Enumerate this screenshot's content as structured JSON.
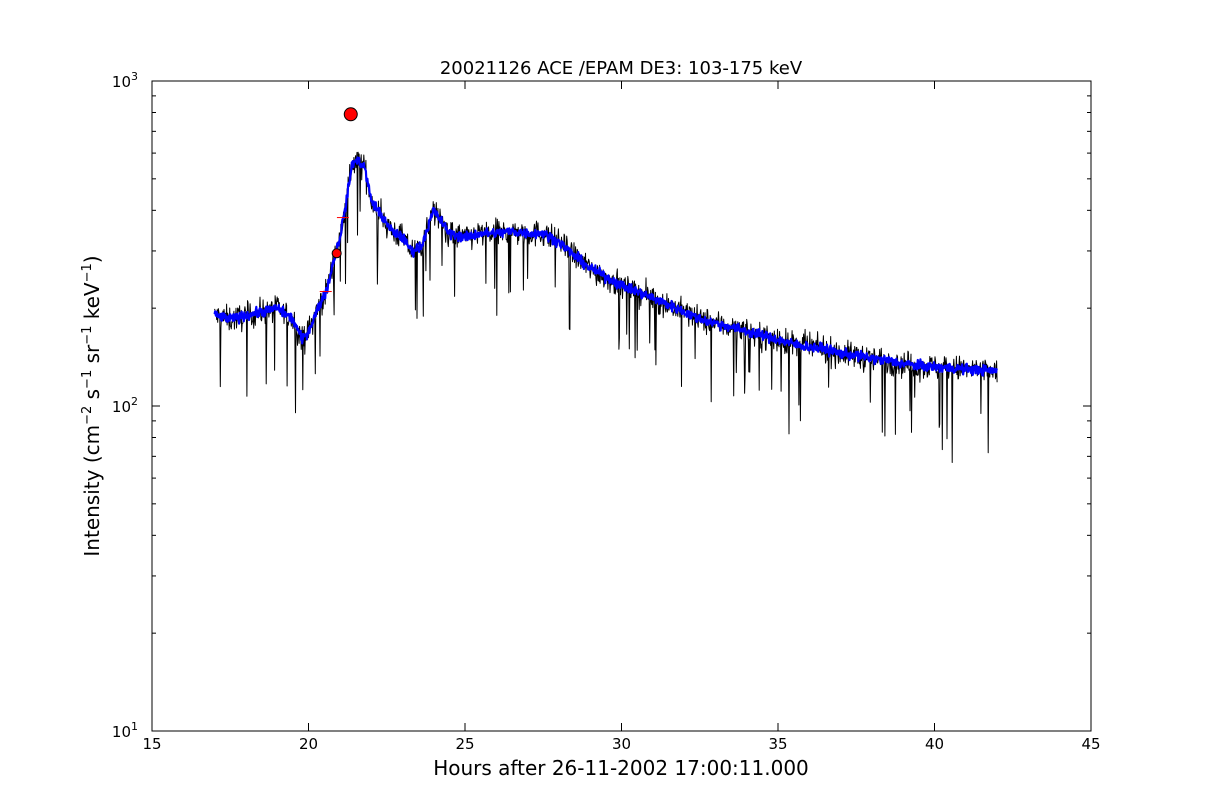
{
  "chart_data": {
    "type": "line",
    "title": "20021126 ACE /EPAM DE3: 103-175 keV",
    "xlabel": "Hours after 26-11-2002 17:00:11.000",
    "ylabel_text": "Intensity (cm",
    "ylabel_parts": [
      "Intensity (cm",
      "−2",
      " s",
      "−1",
      " sr",
      "−1",
      " keV",
      "−1",
      ")"
    ],
    "xlim": [
      15,
      45
    ],
    "ylim": [
      10,
      1000
    ],
    "yscale": "log",
    "grid": false,
    "legend": "none",
    "x_ticks": [
      "15",
      "20",
      "25",
      "30",
      "35",
      "40",
      "45"
    ],
    "y_ticks": [
      {
        "base": "10",
        "exp": "1"
      },
      {
        "base": "10",
        "exp": "2"
      },
      {
        "base": "10",
        "exp": "3"
      }
    ],
    "series": [
      {
        "color": "#000000",
        "style": "raw-noisy",
        "x": [
          17.0,
          17.5,
          18.0,
          18.5,
          19.0,
          19.5,
          19.8,
          20.0,
          20.3,
          20.6,
          20.8,
          21.0,
          21.2,
          21.4,
          21.6,
          21.8,
          22.0,
          22.3,
          22.6,
          23.0,
          23.3,
          23.6,
          24.0,
          24.5,
          25.0,
          25.5,
          26.0,
          26.5,
          27.0,
          27.5,
          28.0,
          28.5,
          29.0,
          29.5,
          30.0,
          30.5,
          31.0,
          31.5,
          32.0,
          32.5,
          33.0,
          33.5,
          34.0,
          34.5,
          35.0,
          35.5,
          36.0,
          36.5,
          37.0,
          37.5,
          38.0,
          38.5,
          39.0,
          39.5,
          40.0,
          40.5,
          41.0,
          41.5,
          42.0
        ],
        "values": [
          190,
          185,
          190,
          195,
          200,
          185,
          160,
          170,
          200,
          230,
          280,
          330,
          420,
          560,
          570,
          540,
          430,
          390,
          350,
          330,
          300,
          310,
          400,
          340,
          330,
          340,
          340,
          345,
          340,
          340,
          320,
          290,
          265,
          250,
          235,
          225,
          215,
          205,
          195,
          185,
          180,
          175,
          170,
          165,
          160,
          155,
          152,
          150,
          145,
          143,
          140,
          138,
          135,
          133,
          132,
          131,
          130,
          129,
          128
        ]
      },
      {
        "color": "#0000ff",
        "style": "smoothed",
        "x": [
          17.0,
          17.5,
          18.0,
          18.5,
          19.0,
          19.5,
          19.8,
          20.0,
          20.3,
          20.6,
          20.8,
          21.0,
          21.2,
          21.4,
          21.6,
          21.8,
          22.0,
          22.3,
          22.6,
          23.0,
          23.3,
          23.6,
          24.0,
          24.5,
          25.0,
          25.5,
          26.0,
          26.5,
          27.0,
          27.5,
          28.0,
          28.5,
          29.0,
          29.5,
          30.0,
          30.5,
          31.0,
          31.5,
          32.0,
          32.5,
          33.0,
          33.5,
          34.0,
          34.5,
          35.0,
          35.5,
          36.0,
          36.5,
          37.0,
          37.5,
          38.0,
          38.5,
          39.0,
          39.5,
          40.0,
          40.5,
          41.0,
          41.5,
          42.0
        ],
        "values": [
          190,
          185,
          190,
          195,
          200,
          185,
          160,
          170,
          200,
          230,
          280,
          330,
          420,
          560,
          570,
          540,
          430,
          390,
          350,
          330,
          300,
          310,
          400,
          340,
          330,
          340,
          340,
          345,
          340,
          340,
          320,
          290,
          265,
          250,
          235,
          225,
          215,
          205,
          195,
          185,
          180,
          175,
          170,
          165,
          160,
          155,
          152,
          150,
          145,
          143,
          140,
          138,
          135,
          133,
          132,
          131,
          130,
          129,
          128
        ]
      }
    ],
    "markers": [
      {
        "x": 21.35,
        "y": 790,
        "color": "#ff0000",
        "size": "large"
      },
      {
        "x": 20.9,
        "y": 295,
        "color": "#ff0000",
        "size": "small"
      }
    ],
    "red_ticks": [
      {
        "x": 20.55,
        "y": 225
      },
      {
        "x": 21.1,
        "y": 380
      }
    ]
  }
}
